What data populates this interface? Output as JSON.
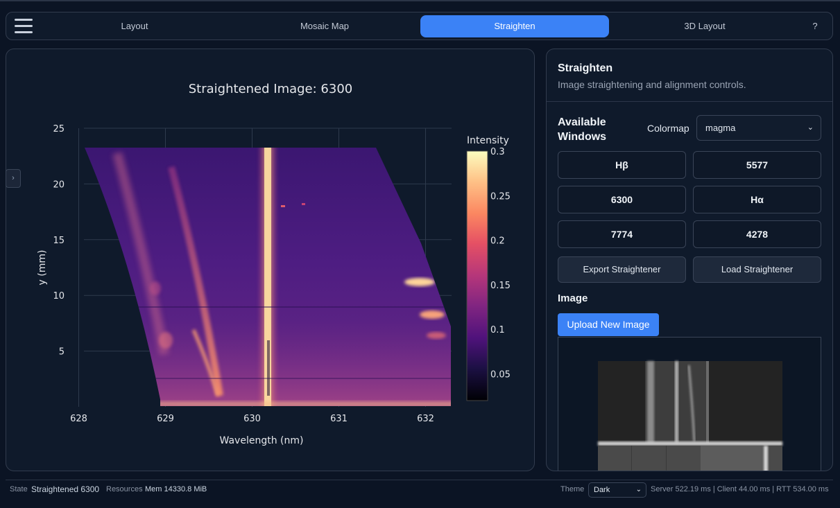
{
  "nav": {
    "tabs": [
      {
        "label": "Layout",
        "active": false
      },
      {
        "label": "Mosaic Map",
        "active": false
      },
      {
        "label": "Straighten",
        "active": true
      },
      {
        "label": "3D Layout",
        "active": false
      },
      {
        "label": "?",
        "active": false
      }
    ]
  },
  "side_toggle": "›",
  "plot": {
    "colorscale": "magma",
    "colorbar_title": "Intensity",
    "accent": "#3b82f6"
  },
  "chart_data": {
    "type": "heatmap",
    "title": "Straightened Image: 6300",
    "xlabel": "Wavelength (nm)",
    "ylabel": "y (mm)",
    "x_ticks": [
      "628",
      "629",
      "630",
      "631",
      "632"
    ],
    "y_ticks": [
      "5",
      "10",
      "15",
      "20",
      "25"
    ],
    "xlim": [
      627.9,
      632.3
    ],
    "ylim": [
      0,
      25
    ],
    "colorbar": {
      "title": "Intensity",
      "ticks": [
        "0.05",
        "0.1",
        "0.15",
        "0.2",
        "0.25",
        "0.3"
      ],
      "range": [
        0.02,
        0.3
      ]
    },
    "emission_lines": [
      {
        "wavelength": 630.1,
        "peak_intensity": 0.3
      },
      {
        "wavelength": 629.5,
        "peak_intensity": 0.22
      }
    ],
    "grid": true
  },
  "controls": {
    "title": "Straighten",
    "subtitle": "Image straightening and alignment controls.",
    "windows_label": "Available Windows",
    "colormap_label": "Colormap",
    "colormap_value": "magma",
    "windows": [
      "Hβ",
      "5577",
      "6300",
      "Hα",
      "7774",
      "4278"
    ],
    "export_label": "Export Straightener",
    "load_label": "Load Straightener",
    "image_heading": "Image",
    "upload_label": "Upload New Image"
  },
  "status": {
    "state_label": "State",
    "state_value": "Straightened 6300",
    "resources_label": "Resources",
    "mem": "Mem 14330.8 MiB",
    "theme_label": "Theme",
    "theme_value": "Dark",
    "timings": "Server 522.19 ms | Client 44.00 ms | RTT 534.00 ms"
  }
}
